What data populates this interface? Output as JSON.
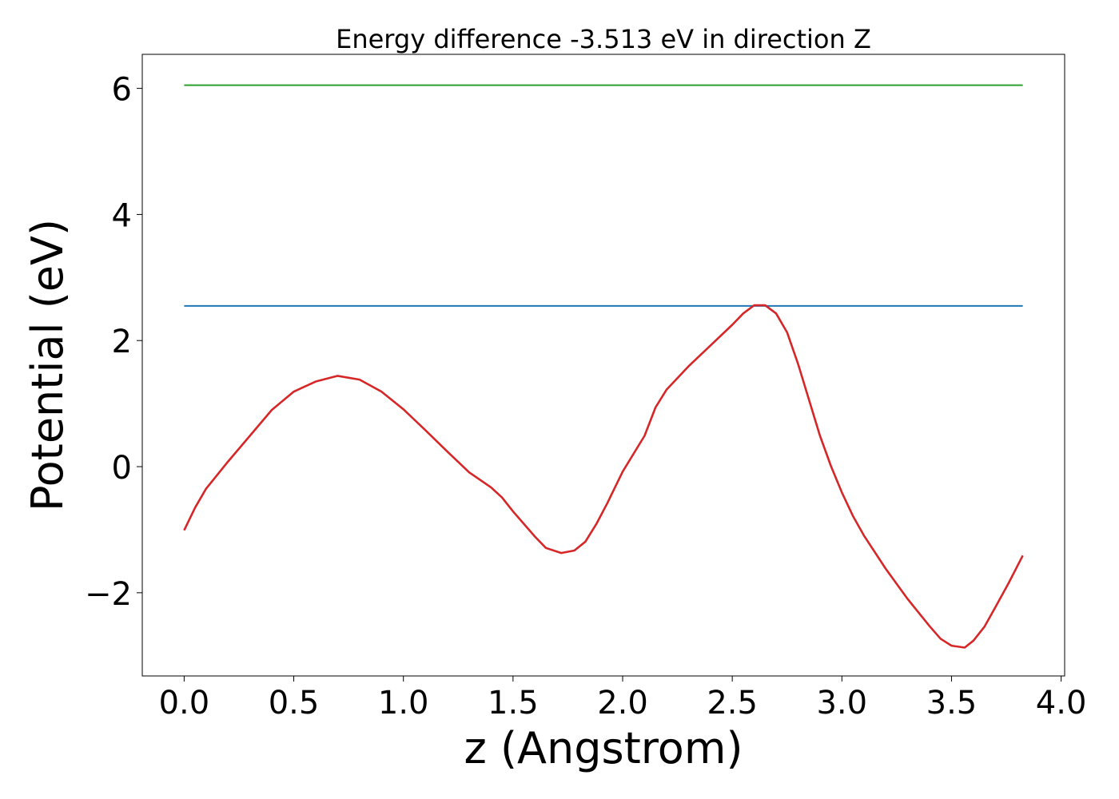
{
  "chart_data": {
    "type": "line",
    "title": "Energy difference -3.513 eV in direction Z",
    "xlabel": "z (Angstrom)",
    "ylabel": "Potential (eV)",
    "xlim": [
      -0.191,
      4.016
    ],
    "ylim": [
      -3.32,
      6.54
    ],
    "xticks": [
      {
        "value": 0,
        "label": "0.0"
      },
      {
        "value": 0.5,
        "label": "0.5"
      },
      {
        "value": 1,
        "label": "1.0"
      },
      {
        "value": 1.5,
        "label": "1.5"
      },
      {
        "value": 2,
        "label": "2.0"
      },
      {
        "value": 2.5,
        "label": "2.5"
      },
      {
        "value": 3,
        "label": "3.0"
      },
      {
        "value": 3.5,
        "label": "3.5"
      },
      {
        "value": 4,
        "label": "4.0"
      }
    ],
    "yticks": [
      {
        "value": -2,
        "label": "−2"
      },
      0,
      2,
      4,
      6
    ],
    "grid": false,
    "series": [
      {
        "color": "#2ca02c",
        "x": [
          0,
          3.825
        ],
        "values": [
          6.05,
          6.05
        ]
      },
      {
        "color": "#1f77b4",
        "x": [
          0,
          3.825
        ],
        "values": [
          2.55,
          2.55
        ]
      },
      {
        "color": "#d62728",
        "x": [
          0,
          0.05,
          0.1,
          0.2,
          0.3,
          0.4,
          0.5,
          0.6,
          0.7,
          0.8,
          0.9,
          1.0,
          1.1,
          1.2,
          1.3,
          1.4,
          1.45,
          1.5,
          1.6,
          1.65,
          1.72,
          1.78,
          1.83,
          1.88,
          1.93,
          2.0,
          2.1,
          2.15,
          2.2,
          2.3,
          2.4,
          2.5,
          2.55,
          2.6,
          2.65,
          2.7,
          2.75,
          2.8,
          2.85,
          2.9,
          2.95,
          3.0,
          3.05,
          3.1,
          3.2,
          3.3,
          3.4,
          3.45,
          3.5,
          3.56,
          3.6,
          3.65,
          3.7,
          3.76,
          3.825
        ],
        "values": [
          -1.01,
          -0.65,
          -0.35,
          0.08,
          0.49,
          0.9,
          1.19,
          1.35,
          1.44,
          1.38,
          1.19,
          0.91,
          0.58,
          0.24,
          -0.09,
          -0.33,
          -0.49,
          -0.71,
          -1.11,
          -1.29,
          -1.37,
          -1.33,
          -1.19,
          -0.91,
          -0.58,
          -0.08,
          0.49,
          0.94,
          1.22,
          1.59,
          1.92,
          2.25,
          2.43,
          2.56,
          2.56,
          2.43,
          2.13,
          1.63,
          1.06,
          0.49,
          0.01,
          -0.41,
          -0.78,
          -1.09,
          -1.62,
          -2.1,
          -2.53,
          -2.73,
          -2.84,
          -2.87,
          -2.76,
          -2.54,
          -2.23,
          -1.85,
          -1.41
        ]
      }
    ]
  }
}
